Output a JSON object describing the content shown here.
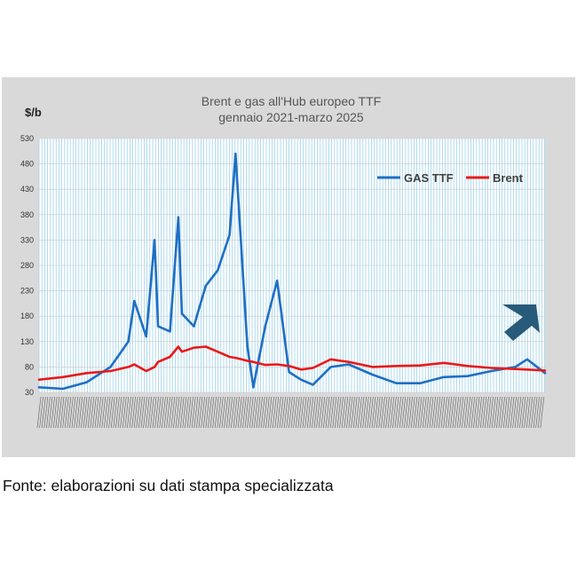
{
  "footer": {
    "source": "Fonte: elaborazioni su dati stampa specializzata"
  },
  "chart_data": {
    "type": "line",
    "title": "Brent e gas all'Hub europeo TTF",
    "subtitle": "gennaio 2021-marzo 2025",
    "ylabel": "$/b",
    "xlabel": "",
    "ylim": [
      30,
      530
    ],
    "yticks": [
      30,
      80,
      130,
      180,
      230,
      280,
      330,
      380,
      430,
      480,
      530
    ],
    "grid": true,
    "legend": "top-right",
    "x": [
      2021.0,
      2021.2,
      2021.4,
      2021.6,
      2021.75,
      2021.8,
      2021.9,
      2021.97,
      2022.0,
      2022.1,
      2022.17,
      2022.2,
      2022.3,
      2022.4,
      2022.5,
      2022.6,
      2022.65,
      2022.7,
      2022.75,
      2022.8,
      2022.9,
      2023.0,
      2023.1,
      2023.2,
      2023.3,
      2023.45,
      2023.6,
      2023.8,
      2024.0,
      2024.2,
      2024.4,
      2024.6,
      2024.8,
      2025.0,
      2025.1,
      2025.25
    ],
    "series": [
      {
        "name": "GAS TTF",
        "color": "#1f6fc4",
        "values": [
          40,
          37,
          50,
          80,
          130,
          210,
          140,
          330,
          160,
          150,
          375,
          185,
          160,
          240,
          270,
          340,
          500,
          310,
          120,
          40,
          160,
          250,
          70,
          55,
          45,
          80,
          85,
          65,
          48,
          48,
          60,
          62,
          72,
          80,
          95,
          68
        ]
      },
      {
        "name": "Brent",
        "color": "#e81a1a",
        "values": [
          55,
          60,
          68,
          72,
          80,
          85,
          72,
          80,
          90,
          100,
          120,
          110,
          118,
          120,
          110,
          100,
          98,
          95,
          92,
          90,
          84,
          85,
          82,
          75,
          78,
          95,
          90,
          80,
          82,
          83,
          88,
          82,
          78,
          76,
          75,
          73
        ]
      }
    ]
  }
}
